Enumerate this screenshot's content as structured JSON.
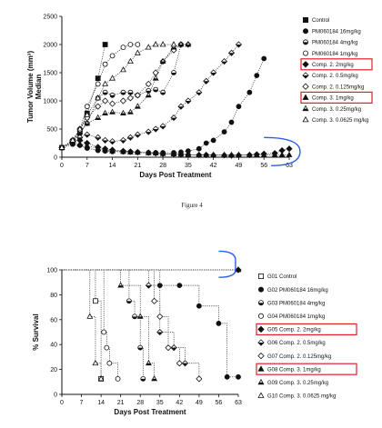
{
  "caption": "Figure 4",
  "chart_data": [
    {
      "type": "line",
      "xlabel": "Days Post Treatment",
      "ylabel": "Tumor Volume (mm³)\nMedian",
      "xlim": [
        0,
        63
      ],
      "ylim": [
        0,
        2500
      ],
      "xticks": [
        0,
        7,
        14,
        21,
        28,
        35,
        42,
        49,
        56,
        63
      ],
      "yticks": [
        0,
        500,
        1000,
        1500,
        2000,
        2500
      ],
      "legend_position": "right",
      "highlighted_legend_entries": [
        "Comp. 2. 2mg/kg",
        "Comp. 3. 1mg/kg"
      ],
      "annotation": "blue bracket around Comp. 2 2mg/kg and Comp. 3 1mg/kg curves at days 56-63",
      "series": [
        {
          "name": "Control",
          "marker": "square-filled",
          "x": [
            0,
            3,
            5,
            7,
            10,
            12
          ],
          "y": [
            170,
            280,
            450,
            780,
            1400,
            2000
          ]
        },
        {
          "name": "PM060184 16mg/kg",
          "marker": "circle-filled",
          "x": [
            0,
            3,
            5,
            7,
            10,
            12,
            14,
            17,
            19,
            21,
            24,
            26,
            28,
            31,
            33,
            35,
            38,
            40,
            42,
            45,
            47,
            49,
            52,
            54,
            56
          ],
          "y": [
            170,
            230,
            210,
            160,
            120,
            110,
            100,
            95,
            90,
            85,
            80,
            80,
            80,
            80,
            90,
            110,
            150,
            250,
            300,
            450,
            620,
            900,
            1150,
            1450,
            1750
          ]
        },
        {
          "name": "PM060184 4mg/kg",
          "marker": "circle-half",
          "x": [
            0,
            3,
            5,
            7,
            10,
            12,
            14,
            17,
            19,
            21,
            24,
            26,
            28,
            31,
            33
          ],
          "y": [
            170,
            280,
            420,
            600,
            1050,
            1150,
            1100,
            1150,
            1150,
            1100,
            1180,
            1200,
            1150,
            1500,
            2000
          ]
        },
        {
          "name": "PM060184 1mg/kg",
          "marker": "circle-open",
          "x": [
            0,
            3,
            5,
            7,
            10,
            12,
            14,
            17,
            19,
            21
          ],
          "y": [
            170,
            300,
            500,
            900,
            1300,
            1650,
            1800,
            1950,
            2000,
            2000
          ]
        },
        {
          "name": "Comp. 2. 2mg/kg",
          "marker": "diamond-filled",
          "x": [
            0,
            3,
            5,
            7,
            10,
            12,
            14,
            17,
            19,
            21,
            24,
            26,
            28,
            31,
            33,
            35,
            38,
            40,
            42,
            45,
            47,
            49,
            52,
            54,
            56,
            59,
            61,
            63
          ],
          "y": [
            170,
            280,
            300,
            250,
            180,
            150,
            130,
            110,
            100,
            90,
            80,
            70,
            60,
            55,
            50,
            45,
            40,
            40,
            35,
            35,
            30,
            35,
            40,
            50,
            60,
            70,
            120,
            150
          ]
        },
        {
          "name": "Comp. 2. 0.5mg/kg",
          "marker": "diamond-half",
          "x": [
            0,
            3,
            5,
            7,
            10,
            12,
            14,
            17,
            19,
            21,
            24,
            26,
            28,
            31,
            33,
            35,
            38,
            40,
            42,
            45,
            47,
            49
          ],
          "y": [
            170,
            280,
            350,
            400,
            350,
            300,
            280,
            300,
            350,
            400,
            450,
            500,
            550,
            700,
            900,
            1000,
            1150,
            1350,
            1500,
            1700,
            1850,
            2000
          ]
        },
        {
          "name": "Comp. 2. 0.125mg/kg",
          "marker": "diamond-open",
          "x": [
            0,
            3,
            5,
            7,
            10,
            12,
            14,
            17,
            19,
            21,
            24,
            26,
            28,
            31,
            33,
            35
          ],
          "y": [
            170,
            300,
            500,
            700,
            900,
            1000,
            950,
            1000,
            1050,
            1100,
            1300,
            1500,
            1700,
            1900,
            2000,
            2000
          ]
        },
        {
          "name": "Comp. 3. 1mg/kg",
          "marker": "triangle-filled",
          "x": [
            0,
            3,
            5,
            7,
            10,
            12,
            14,
            17,
            19,
            21,
            24,
            26,
            28,
            31,
            33,
            35,
            38,
            40,
            42,
            45,
            47,
            49,
            52,
            54,
            56,
            59,
            61,
            63
          ],
          "y": [
            170,
            260,
            230,
            200,
            160,
            130,
            110,
            100,
            90,
            85,
            75,
            70,
            60,
            55,
            50,
            45,
            40,
            40,
            40,
            40,
            40,
            40,
            40,
            40,
            40,
            40,
            40,
            40
          ]
        },
        {
          "name": "Comp. 3. 0.25mg/kg",
          "marker": "triangle-half",
          "x": [
            0,
            3,
            5,
            7,
            10,
            12,
            14,
            17,
            19,
            21,
            24,
            26,
            28,
            31,
            33,
            35
          ],
          "y": [
            170,
            300,
            450,
            600,
            700,
            780,
            800,
            780,
            800,
            900,
            1100,
            1400,
            1700,
            1950,
            2000,
            2000
          ]
        },
        {
          "name": "Comp. 3. 0.0625 mg/kg",
          "marker": "triangle-open",
          "x": [
            0,
            3,
            5,
            7,
            10,
            12,
            14,
            17,
            19,
            21,
            24,
            26,
            28,
            31
          ],
          "y": [
            170,
            300,
            500,
            750,
            1050,
            1300,
            1400,
            1550,
            1700,
            1850,
            1950,
            2000,
            2000,
            2000
          ]
        }
      ]
    },
    {
      "type": "line",
      "step": true,
      "xlabel": "Days Post Treatment",
      "ylabel": "% Survival",
      "xlim": [
        0,
        63
      ],
      "ylim": [
        0,
        100
      ],
      "xticks": [
        0,
        7,
        14,
        21,
        28,
        35,
        42,
        49,
        56,
        63
      ],
      "yticks": [
        0,
        20,
        40,
        60,
        80,
        100
      ],
      "legend_position": "right",
      "highlighted_legend_entries": [
        "G05 Comp. 2. 2mg/kg",
        "G08 Comp. 3. 1mg/kg"
      ],
      "annotation": "blue bracket around the 100% survival point at day 63",
      "series": [
        {
          "name": "G01 Control",
          "marker": "square-open",
          "x": [
            0,
            12,
            14
          ],
          "y": [
            100,
            75,
            12.5
          ]
        },
        {
          "name": "G02 PM060184 16mg/kg",
          "marker": "circle-filled",
          "x": [
            0,
            35,
            42,
            49,
            56,
            59,
            63
          ],
          "y": [
            100,
            87.5,
            87.5,
            71,
            57,
            14,
            14
          ]
        },
        {
          "name": "G03 PM060184 4mg/kg",
          "marker": "circle-half",
          "x": [
            0,
            24,
            26,
            28,
            29
          ],
          "y": [
            100,
            75,
            62.5,
            37.5,
            12.5
          ]
        },
        {
          "name": "G04 PM060184 1mg/kg",
          "marker": "circle-open",
          "x": [
            0,
            15,
            16,
            17,
            20
          ],
          "y": [
            100,
            50,
            37.5,
            25,
            12.5
          ]
        },
        {
          "name": "G05 Comp. 2. 2mg/kg",
          "marker": "diamond-filled",
          "x": [
            0,
            63
          ],
          "y": [
            100,
            100
          ]
        },
        {
          "name": "G06 Comp. 2. 0.5mg/kg",
          "marker": "diamond-half",
          "x": [
            0,
            31,
            35,
            40,
            44
          ],
          "y": [
            100,
            87.5,
            50,
            37.5,
            25
          ]
        },
        {
          "name": "G07 Comp. 2. 0.125mg/kg",
          "marker": "diamond-open",
          "x": [
            0,
            33,
            35,
            38,
            42,
            49
          ],
          "y": [
            100,
            75,
            62.5,
            37.5,
            25,
            12.5
          ]
        },
        {
          "name": "G08 Comp. 3. 1mg/kg",
          "marker": "triangle-filled",
          "x": [
            0,
            63
          ],
          "y": [
            100,
            100
          ]
        },
        {
          "name": "G09 Comp. 3. 0.25mg/kg",
          "marker": "triangle-half",
          "x": [
            0,
            21,
            28,
            31,
            33
          ],
          "y": [
            100,
            87.5,
            62.5,
            25,
            12.5
          ]
        },
        {
          "name": "G10 Comp. 3. 0.0625 mg/kg",
          "marker": "triangle-open",
          "x": [
            0,
            10,
            12,
            14
          ],
          "y": [
            100,
            62.5,
            25,
            12.5
          ]
        }
      ]
    }
  ]
}
